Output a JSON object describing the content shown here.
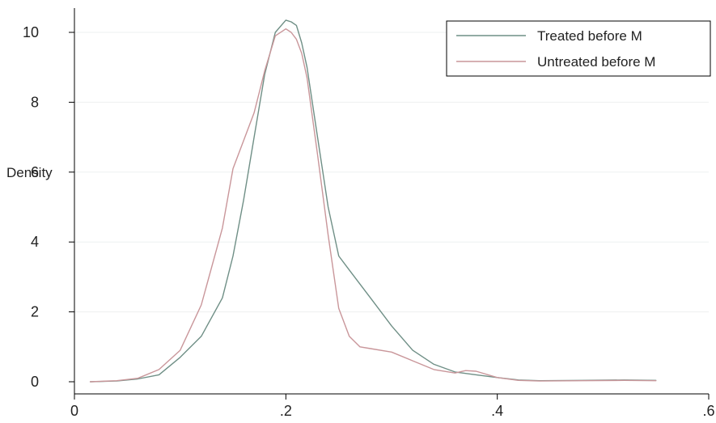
{
  "chart_data": {
    "type": "line",
    "title": "",
    "xlabel": "",
    "ylabel": "Density",
    "xlim": [
      0,
      0.6
    ],
    "ylim": [
      0,
      10
    ],
    "xticks": [
      0,
      0.2,
      0.4,
      0.6
    ],
    "xtick_labels": [
      "0",
      ".2",
      ".4",
      ".6"
    ],
    "yticks": [
      0,
      2,
      4,
      6,
      8,
      10
    ],
    "ytick_labels": [
      "0",
      "2",
      "4",
      "6",
      "8",
      "10"
    ],
    "grid": "horizontal",
    "legend_position": "top-right",
    "series": [
      {
        "name": "Treated before M",
        "color": "#6f8f86",
        "x": [
          0.015,
          0.04,
          0.06,
          0.08,
          0.1,
          0.12,
          0.14,
          0.15,
          0.16,
          0.17,
          0.18,
          0.19,
          0.2,
          0.205,
          0.21,
          0.215,
          0.22,
          0.23,
          0.24,
          0.25,
          0.26,
          0.28,
          0.3,
          0.32,
          0.34,
          0.36,
          0.38,
          0.4,
          0.42,
          0.44,
          0.48,
          0.52,
          0.55
        ],
        "y": [
          0.0,
          0.02,
          0.08,
          0.2,
          0.7,
          1.3,
          2.4,
          3.6,
          5.2,
          7.0,
          8.8,
          10.0,
          10.35,
          10.3,
          10.2,
          9.7,
          9.0,
          7.0,
          5.0,
          3.6,
          3.2,
          2.4,
          1.6,
          0.9,
          0.5,
          0.28,
          0.2,
          0.12,
          0.05,
          0.03,
          0.04,
          0.05,
          0.04
        ]
      },
      {
        "name": "Untreated before M",
        "color": "#c9969a",
        "x": [
          0.015,
          0.04,
          0.06,
          0.08,
          0.1,
          0.12,
          0.14,
          0.15,
          0.16,
          0.17,
          0.18,
          0.19,
          0.2,
          0.205,
          0.21,
          0.215,
          0.22,
          0.23,
          0.24,
          0.25,
          0.26,
          0.27,
          0.28,
          0.3,
          0.32,
          0.34,
          0.36,
          0.37,
          0.38,
          0.4,
          0.42,
          0.44,
          0.48,
          0.52,
          0.55
        ],
        "y": [
          0.0,
          0.03,
          0.1,
          0.35,
          0.9,
          2.2,
          4.4,
          6.1,
          6.9,
          7.7,
          8.9,
          9.9,
          10.1,
          10.0,
          9.8,
          9.4,
          8.7,
          6.5,
          4.2,
          2.1,
          1.3,
          1.0,
          0.95,
          0.85,
          0.6,
          0.35,
          0.25,
          0.32,
          0.3,
          0.12,
          0.04,
          0.02,
          0.03,
          0.04,
          0.03
        ]
      }
    ]
  }
}
